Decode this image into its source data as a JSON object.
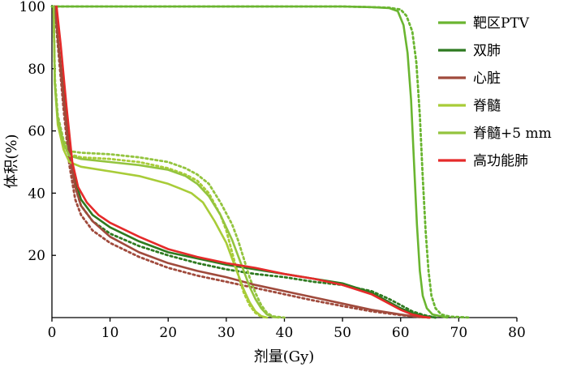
{
  "chart_data": {
    "type": "line",
    "xlabel": "剂量(Gy)",
    "ylabel": "体积(%)",
    "xlim": [
      0,
      80
    ],
    "ylim": [
      0,
      100
    ],
    "xticks": [
      0,
      10,
      20,
      30,
      40,
      50,
      60,
      70,
      80
    ],
    "yticks": [
      20,
      40,
      60,
      80,
      100
    ],
    "grid": false,
    "legend_position": "top-right",
    "series": [
      {
        "name": "靶区PTV",
        "color": "#6ab530",
        "solid": [
          [
            0,
            100
          ],
          [
            10,
            100
          ],
          [
            20,
            100
          ],
          [
            30,
            100
          ],
          [
            40,
            100
          ],
          [
            50,
            100
          ],
          [
            55,
            99.8
          ],
          [
            58,
            99.5
          ],
          [
            59.5,
            98.5
          ],
          [
            60.5,
            94
          ],
          [
            61.2,
            85
          ],
          [
            61.8,
            70
          ],
          [
            62.3,
            50
          ],
          [
            62.8,
            30
          ],
          [
            63.3,
            15
          ],
          [
            63.8,
            7
          ],
          [
            64.5,
            3
          ],
          [
            65.5,
            1
          ],
          [
            68,
            0
          ]
        ],
        "dotted": [
          [
            0,
            100
          ],
          [
            10,
            100
          ],
          [
            20,
            100
          ],
          [
            30,
            100
          ],
          [
            40,
            100
          ],
          [
            50,
            100
          ],
          [
            55,
            99.8
          ],
          [
            58,
            99.6
          ],
          [
            60,
            99
          ],
          [
            61,
            97
          ],
          [
            62,
            92
          ],
          [
            62.7,
            82
          ],
          [
            63.3,
            65
          ],
          [
            63.8,
            45
          ],
          [
            64.3,
            28
          ],
          [
            64.8,
            15
          ],
          [
            65.3,
            7
          ],
          [
            66,
            3
          ],
          [
            67,
            1
          ],
          [
            68.5,
            0.3
          ],
          [
            72,
            0
          ]
        ]
      },
      {
        "name": "双肺",
        "color": "#2e7a20",
        "solid": [
          [
            0.5,
            100
          ],
          [
            1,
            90
          ],
          [
            2,
            72
          ],
          [
            3,
            55
          ],
          [
            4,
            44
          ],
          [
            5,
            38
          ],
          [
            7,
            33
          ],
          [
            10,
            29
          ],
          [
            15,
            24.5
          ],
          [
            20,
            21
          ],
          [
            25,
            19
          ],
          [
            30,
            17
          ],
          [
            35,
            15.5
          ],
          [
            40,
            14
          ],
          [
            45,
            12.5
          ],
          [
            50,
            11
          ],
          [
            55,
            8
          ],
          [
            58,
            5
          ],
          [
            60,
            3
          ],
          [
            62,
            1.5
          ],
          [
            64,
            0.5
          ],
          [
            66,
            0
          ]
        ],
        "dotted": [
          [
            0.5,
            100
          ],
          [
            1,
            88
          ],
          [
            2,
            68
          ],
          [
            3,
            52
          ],
          [
            4,
            42
          ],
          [
            5,
            36
          ],
          [
            7,
            31
          ],
          [
            10,
            27
          ],
          [
            15,
            23
          ],
          [
            20,
            20
          ],
          [
            25,
            17.5
          ],
          [
            30,
            15.5
          ],
          [
            35,
            14
          ],
          [
            40,
            13
          ],
          [
            45,
            11.5
          ],
          [
            50,
            10.5
          ],
          [
            55,
            8.5
          ],
          [
            58,
            6
          ],
          [
            60,
            4
          ],
          [
            62,
            2
          ],
          [
            64,
            0.8
          ],
          [
            66,
            0
          ]
        ]
      },
      {
        "name": "心脏",
        "color": "#a04a3c",
        "solid": [
          [
            0.5,
            100
          ],
          [
            1,
            90
          ],
          [
            2,
            70
          ],
          [
            3,
            52
          ],
          [
            4,
            42
          ],
          [
            5,
            36
          ],
          [
            7,
            31
          ],
          [
            10,
            26
          ],
          [
            15,
            21
          ],
          [
            20,
            17.5
          ],
          [
            25,
            15
          ],
          [
            30,
            13
          ],
          [
            35,
            10.5
          ],
          [
            40,
            8.5
          ],
          [
            45,
            6.5
          ],
          [
            50,
            4.5
          ],
          [
            55,
            2.5
          ],
          [
            60,
            1
          ],
          [
            63,
            0.2
          ],
          [
            65,
            0
          ]
        ],
        "dotted": [
          [
            0.5,
            100
          ],
          [
            1,
            88
          ],
          [
            2,
            67
          ],
          [
            3,
            49
          ],
          [
            4,
            38
          ],
          [
            5,
            33
          ],
          [
            7,
            28
          ],
          [
            10,
            24
          ],
          [
            15,
            19.5
          ],
          [
            20,
            16
          ],
          [
            25,
            13.5
          ],
          [
            30,
            11.5
          ],
          [
            35,
            9.5
          ],
          [
            40,
            7.5
          ],
          [
            45,
            5.5
          ],
          [
            50,
            3.7
          ],
          [
            55,
            2
          ],
          [
            60,
            0.8
          ],
          [
            63,
            0.2
          ],
          [
            65,
            0
          ]
        ]
      },
      {
        "name": "脊髓",
        "color": "#a8cc38",
        "solid": [
          [
            0.3,
            100
          ],
          [
            0.5,
            75
          ],
          [
            1,
            62
          ],
          [
            2,
            54
          ],
          [
            3,
            50
          ],
          [
            5,
            48.5
          ],
          [
            10,
            47
          ],
          [
            15,
            45.5
          ],
          [
            20,
            43
          ],
          [
            22,
            41.5
          ],
          [
            24,
            40
          ],
          [
            26,
            37
          ],
          [
            28,
            31
          ],
          [
            30,
            24
          ],
          [
            31,
            19
          ],
          [
            32,
            14
          ],
          [
            33,
            9
          ],
          [
            34,
            5
          ],
          [
            35,
            2
          ],
          [
            36,
            0.5
          ],
          [
            37,
            0
          ]
        ],
        "dotted": [
          [
            0.3,
            100
          ],
          [
            0.5,
            76
          ],
          [
            1,
            63
          ],
          [
            2,
            55
          ],
          [
            3,
            52.5
          ],
          [
            5,
            51.5
          ],
          [
            10,
            51
          ],
          [
            15,
            50
          ],
          [
            20,
            48
          ],
          [
            23,
            46
          ],
          [
            25,
            44
          ],
          [
            27,
            40
          ],
          [
            29,
            33
          ],
          [
            30,
            28
          ],
          [
            31,
            21
          ],
          [
            32,
            14
          ],
          [
            33,
            8
          ],
          [
            34,
            4
          ],
          [
            35,
            1.5
          ],
          [
            36,
            0.3
          ],
          [
            37,
            0
          ]
        ]
      },
      {
        "name": "脊髓+5 mm",
        "color": "#93c43e",
        "solid": [
          [
            0.3,
            100
          ],
          [
            0.5,
            75
          ],
          [
            1,
            64
          ],
          [
            2,
            56
          ],
          [
            3,
            52
          ],
          [
            5,
            51
          ],
          [
            10,
            50
          ],
          [
            15,
            49
          ],
          [
            20,
            47.5
          ],
          [
            23,
            45.5
          ],
          [
            25,
            43
          ],
          [
            27,
            39
          ],
          [
            29,
            33
          ],
          [
            31,
            25
          ],
          [
            32,
            20
          ],
          [
            33,
            15
          ],
          [
            34,
            10
          ],
          [
            35,
            6
          ],
          [
            36,
            3
          ],
          [
            37,
            1
          ],
          [
            38,
            0.2
          ],
          [
            39,
            0
          ]
        ],
        "dotted": [
          [
            0.3,
            100
          ],
          [
            0.5,
            77
          ],
          [
            1,
            65
          ],
          [
            2,
            57
          ],
          [
            3,
            53.5
          ],
          [
            5,
            53
          ],
          [
            10,
            52.5
          ],
          [
            15,
            51.5
          ],
          [
            20,
            50
          ],
          [
            23,
            48
          ],
          [
            25,
            46
          ],
          [
            27,
            43
          ],
          [
            29,
            37
          ],
          [
            31,
            30
          ],
          [
            32,
            25
          ],
          [
            33,
            19
          ],
          [
            34,
            13
          ],
          [
            35,
            8
          ],
          [
            36,
            4
          ],
          [
            37,
            1.5
          ],
          [
            38,
            0.4
          ],
          [
            40,
            0
          ]
        ]
      },
      {
        "name": "高功能肺",
        "color": "#e52a2a",
        "solid": [
          [
            0.8,
            100
          ],
          [
            1.5,
            88
          ],
          [
            2.5,
            68
          ],
          [
            3.5,
            50
          ],
          [
            4.5,
            42
          ],
          [
            6,
            37
          ],
          [
            8,
            33
          ],
          [
            10,
            30.5
          ],
          [
            15,
            26
          ],
          [
            20,
            22
          ],
          [
            25,
            19.5
          ],
          [
            30,
            17.5
          ],
          [
            35,
            16
          ],
          [
            40,
            14
          ],
          [
            45,
            12.5
          ],
          [
            50,
            10.5
          ],
          [
            55,
            7.5
          ],
          [
            58,
            4.5
          ],
          [
            60,
            2.5
          ],
          [
            62,
            1
          ],
          [
            64,
            0.2
          ],
          [
            65,
            0
          ]
        ],
        "dotted": []
      }
    ]
  }
}
